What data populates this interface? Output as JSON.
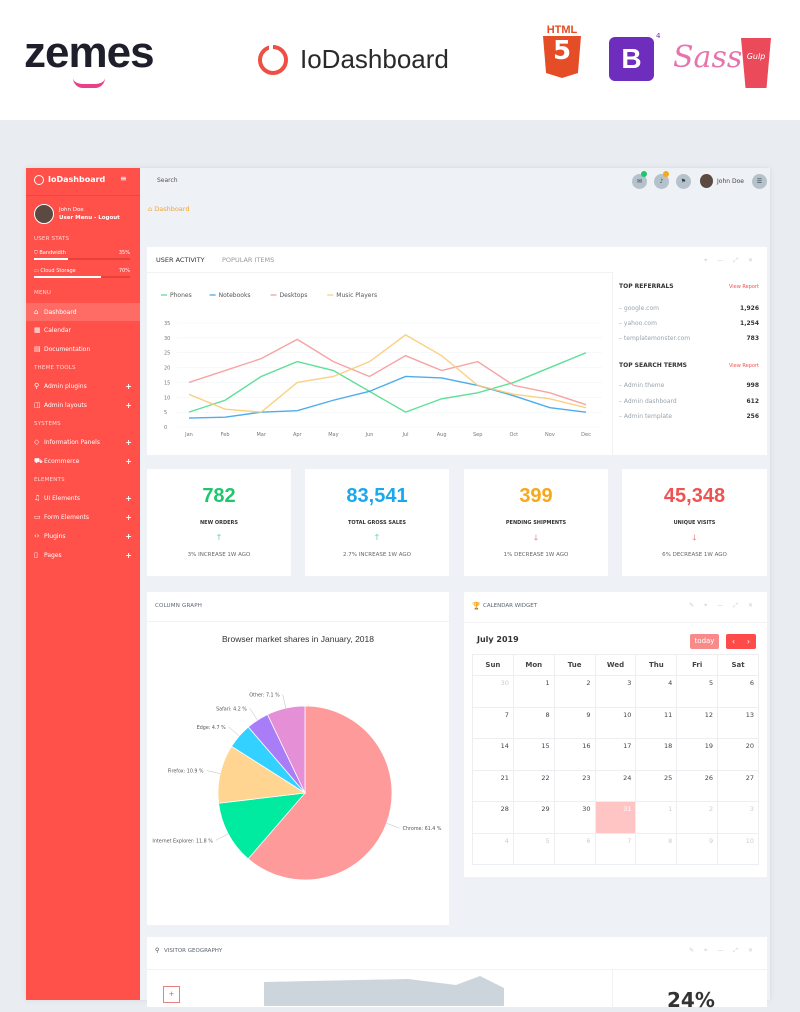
{
  "banner": {
    "zemes_logo": "zemes",
    "product_name": "IoDashboard",
    "tech_logos": [
      "HTML5",
      "Bootstrap 4",
      "Sass",
      "Gulp"
    ],
    "html_label": "HTML",
    "bootstrap_letter": "B",
    "bootstrap_version": "4",
    "sass_label": "Sass",
    "gulp_label": "Gulp"
  },
  "sidebar": {
    "brand": "IoDashboard",
    "user_name": "John Doe",
    "user_menu": "User Menu - Logout",
    "stats_heading": "USER STATS",
    "stats": [
      {
        "label": "Bandwidth",
        "value": "35%",
        "fraction": 0.35
      },
      {
        "label": "Cloud Storage",
        "value": "70%",
        "fraction": 0.7
      }
    ],
    "sections": [
      {
        "heading": "MENU"
      },
      {
        "heading": "THEME TOOLS"
      },
      {
        "heading": "SYSTEMS"
      },
      {
        "heading": "ELEMENTS"
      }
    ],
    "items": [
      {
        "label": "Dashboard",
        "icon": "home-icon",
        "active": true
      },
      {
        "label": "Calendar",
        "icon": "calendar-icon"
      },
      {
        "label": "Documentation",
        "icon": "book-icon"
      },
      {
        "label": "Admin plugins",
        "icon": "plug-icon"
      },
      {
        "label": "Admin layouts",
        "icon": "columns-icon"
      },
      {
        "label": "Information Panels",
        "icon": "diamond-icon"
      },
      {
        "label": "Ecommerce",
        "icon": "cart-icon"
      },
      {
        "label": "UI Elements",
        "icon": "bell-icon"
      },
      {
        "label": "Form Elements",
        "icon": "hdd-icon"
      },
      {
        "label": "Plugins",
        "icon": "code-icon"
      },
      {
        "label": "Pages",
        "icon": "file-icon"
      }
    ]
  },
  "header": {
    "search_placeholder": "Search",
    "user_name": "John Doe",
    "badges": {
      "messages": "",
      "notifications": ""
    }
  },
  "breadcrumb": {
    "label": "Dashboard"
  },
  "activity": {
    "tabs": [
      "USER ACTIVITY",
      "POPULAR ITEMS"
    ],
    "top_referrals": {
      "title": "TOP REFERRALS",
      "link": "View Report",
      "rows": [
        {
          "name": "google.com",
          "value": "1,926"
        },
        {
          "name": "yahoo.com",
          "value": "1,254"
        },
        {
          "name": "templatemonster.com",
          "value": "783"
        }
      ]
    },
    "top_search": {
      "title": "TOP SEARCH TERMS",
      "link": "View Report",
      "rows": [
        {
          "name": "Admin theme",
          "value": "998"
        },
        {
          "name": "Admin dashboard",
          "value": "612"
        },
        {
          "name": "Admin template",
          "value": "256"
        }
      ]
    }
  },
  "chart_data": [
    {
      "type": "line",
      "title": "",
      "legend": "top-left",
      "grid": true,
      "ylim": [
        0,
        35
      ],
      "yticks": [
        "0",
        "5",
        "10",
        "15",
        "20",
        "25",
        "30",
        "35"
      ],
      "categories": [
        "Jan",
        "Feb",
        "Mar",
        "Apr",
        "May",
        "Jun",
        "Jul",
        "Aug",
        "Sep",
        "Oct",
        "Nov",
        "Dec"
      ],
      "series": [
        {
          "name": "Phones",
          "color": "#4ddc8e",
          "values": [
            5,
            9,
            17,
            22,
            19,
            12,
            5,
            9.5,
            11.5,
            15,
            20,
            25
          ]
        },
        {
          "name": "Notebooks",
          "color": "#3aa4e8",
          "values": [
            3,
            3.3,
            5,
            5.5,
            9,
            12,
            17,
            16.5,
            14,
            10.5,
            6.5,
            5
          ]
        },
        {
          "name": "Desktops",
          "color": "#f59a9a",
          "values": [
            15,
            19,
            23,
            29.5,
            22,
            17,
            24,
            19,
            22,
            14,
            11.5,
            7.5
          ]
        },
        {
          "name": "Music Players",
          "color": "#f8cc78",
          "values": [
            11,
            6,
            5,
            15,
            17,
            22,
            31,
            24,
            14,
            11,
            9.5,
            6.5
          ]
        }
      ]
    },
    {
      "type": "pie",
      "title": "Browser market shares in January, 2018",
      "slices": [
        {
          "name": "Chrome",
          "value": 61.4,
          "label": "Chrome: 61.4 %",
          "color": "#ff9a9a"
        },
        {
          "name": "Internet Explorer",
          "value": 11.8,
          "label": "Internet Explorer: 11.8 %",
          "color": "#00eaa0"
        },
        {
          "name": "Firefox",
          "value": 10.9,
          "label": "Firefox: 10.9 %",
          "color": "#ffd591"
        },
        {
          "name": "Edge",
          "value": 4.7,
          "label": "Edge: 4.7 %",
          "color": "#33d1ff"
        },
        {
          "name": "Safari",
          "value": 4.2,
          "label": "Safari: 4.2 %",
          "color": "#a97cf8"
        },
        {
          "name": "Other",
          "value": 7.1,
          "label": "Other: 7.1 %",
          "color": "#e58fd6"
        }
      ]
    }
  ],
  "stats": [
    {
      "value": "782",
      "label": "NEW ORDERS",
      "trend": "up",
      "note": "3% INCREASE 1W AGO",
      "color": "#1fc66d"
    },
    {
      "value": "83,541",
      "label": "TOTAL GROSS SALES",
      "trend": "up",
      "note": "2.7% INCREASE 1W AGO",
      "color": "#1aa9ee"
    },
    {
      "value": "399",
      "label": "PENDING SHIPMENTS",
      "trend": "down",
      "note": "1% DECREASE 1W AGO",
      "color": "#f7a81b"
    },
    {
      "value": "45,348",
      "label": "UNIQUE VISITS",
      "trend": "down",
      "note": "6% DECREASE 1W AGO",
      "color": "#ee5352"
    }
  ],
  "column_graph": {
    "title": "COLUMN GRAPH"
  },
  "calendar": {
    "title": "CALENDAR WIDGET",
    "month": "July 2019",
    "today_label": "today",
    "days": [
      "Sun",
      "Mon",
      "Tue",
      "Wed",
      "Thu",
      "Fri",
      "Sat"
    ],
    "weeks": [
      [
        "30",
        "1",
        "2",
        "3",
        "4",
        "5",
        "6"
      ],
      [
        "7",
        "8",
        "9",
        "10",
        "11",
        "12",
        "13"
      ],
      [
        "14",
        "15",
        "16",
        "17",
        "18",
        "19",
        "20"
      ],
      [
        "21",
        "22",
        "23",
        "24",
        "25",
        "26",
        "27"
      ],
      [
        "28",
        "29",
        "30",
        "31",
        "1",
        "2",
        "3"
      ],
      [
        "4",
        "5",
        "6",
        "7",
        "8",
        "9",
        "10"
      ]
    ],
    "today": "31"
  },
  "geography": {
    "title": "VISITOR GEOGRAPHY",
    "zoom_in": "+",
    "stat": "24%"
  }
}
